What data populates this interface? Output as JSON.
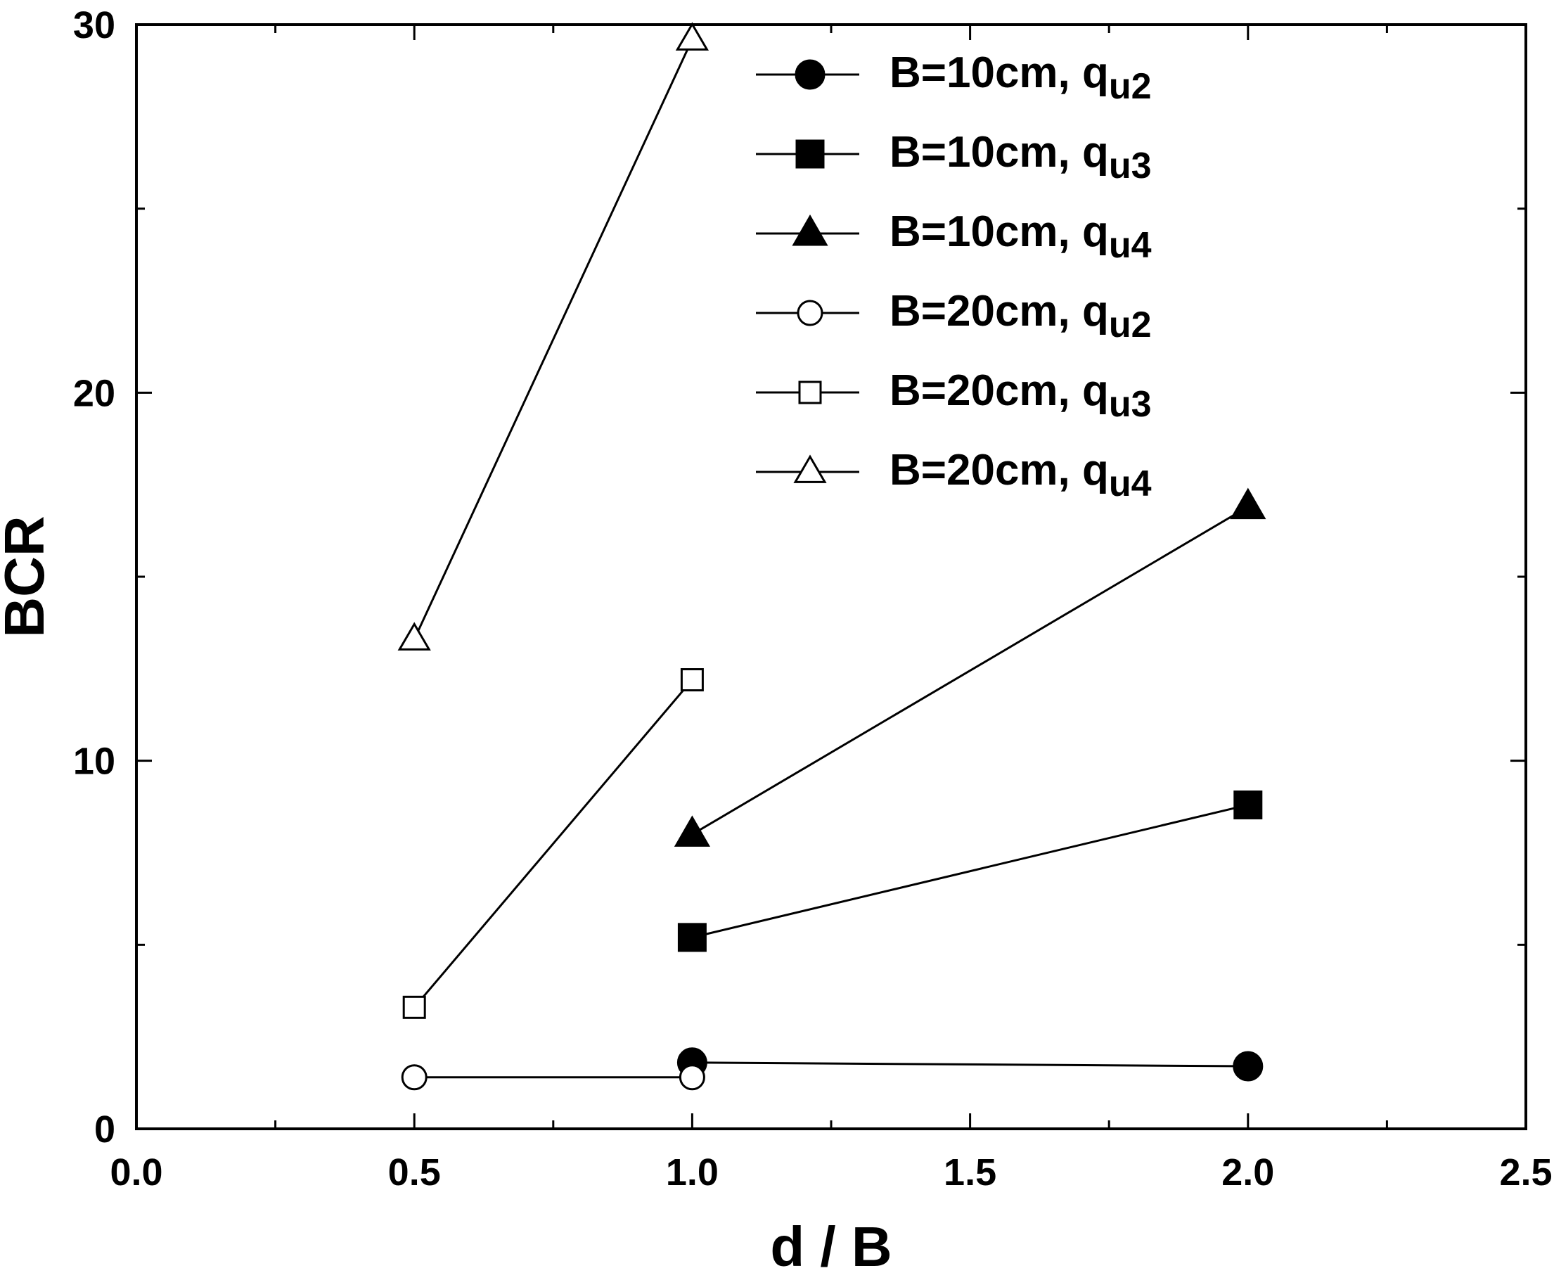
{
  "chart_data": {
    "type": "line",
    "title": "",
    "xlabel": "d / B",
    "ylabel": "BCR",
    "xlim": [
      0.0,
      2.5
    ],
    "ylim": [
      0,
      30
    ],
    "xticks": [
      "0.0",
      "0.5",
      "1.0",
      "1.5",
      "2.0",
      "2.5"
    ],
    "xtick_values": [
      0,
      0.5,
      1.0,
      1.5,
      2.0,
      2.5
    ],
    "yticks": [
      "0",
      "10",
      "20",
      "30"
    ],
    "ytick_values": [
      0,
      10,
      20,
      30
    ],
    "x_minor_step": 0.25,
    "y_minor_step": 5,
    "grid": false,
    "legend_position": "top-right",
    "series": [
      {
        "name_main": "B=10cm, q",
        "name_sub": "u2",
        "marker": "circle",
        "filled": true,
        "x": [
          1.0,
          2.0
        ],
        "y": [
          1.8,
          1.7
        ]
      },
      {
        "name_main": "B=10cm, q",
        "name_sub": "u3",
        "marker": "square",
        "filled": true,
        "x": [
          1.0,
          2.0
        ],
        "y": [
          5.2,
          8.8
        ]
      },
      {
        "name_main": "B=10cm, q",
        "name_sub": "u4",
        "marker": "triangle",
        "filled": true,
        "x": [
          1.0,
          2.0
        ],
        "y": [
          8.0,
          16.9
        ]
      },
      {
        "name_main": "B=20cm, q",
        "name_sub": "u2",
        "marker": "circle",
        "filled": false,
        "x": [
          0.5,
          1.0
        ],
        "y": [
          1.4,
          1.4
        ]
      },
      {
        "name_main": "B=20cm, q",
        "name_sub": "u3",
        "marker": "square",
        "filled": false,
        "x": [
          0.5,
          1.0
        ],
        "y": [
          3.3,
          12.2
        ]
      },
      {
        "name_main": "B=20cm, q",
        "name_sub": "u4",
        "marker": "triangle",
        "filled": false,
        "x": [
          0.5,
          1.0
        ],
        "y": [
          13.3,
          29.6
        ]
      }
    ]
  }
}
